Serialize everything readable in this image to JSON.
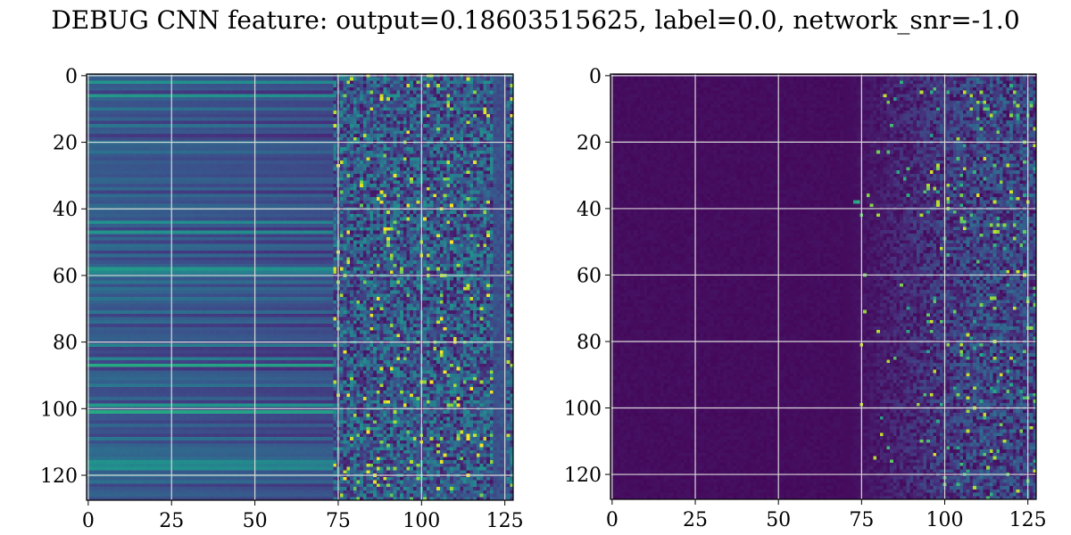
{
  "title": "DEBUG CNN feature: output=0.18603515625, label=0.0, network_snr=-1.0",
  "chart_data": [
    {
      "type": "heatmap",
      "shape": [
        128,
        128
      ],
      "colormap": "viridis",
      "x_ticks": [
        0,
        25,
        50,
        75,
        100,
        125
      ],
      "y_ticks": [
        0,
        20,
        40,
        60,
        80,
        100,
        120
      ],
      "xlim": [
        -0.5,
        127.5
      ],
      "ylim": [
        127.5,
        -0.5
      ],
      "grid": true,
      "pattern": {
        "transition_column": 75,
        "left_region": "horizontal bands of roughly uniform value per row",
        "right_region": "noisy high-variance values with bright speckles"
      }
    },
    {
      "type": "heatmap",
      "shape": [
        128,
        128
      ],
      "colormap": "viridis",
      "x_ticks": [
        0,
        25,
        50,
        75,
        100,
        125
      ],
      "y_ticks": [
        0,
        20,
        40,
        60,
        80,
        100,
        120
      ],
      "xlim": [
        -0.5,
        127.5
      ],
      "ylim": [
        127.5,
        -0.5
      ],
      "grid": true,
      "pattern": {
        "transition_column": 75,
        "left_region": "near-zero dark purple",
        "right_region": "sparse noisy activations increasing to the right"
      }
    }
  ]
}
